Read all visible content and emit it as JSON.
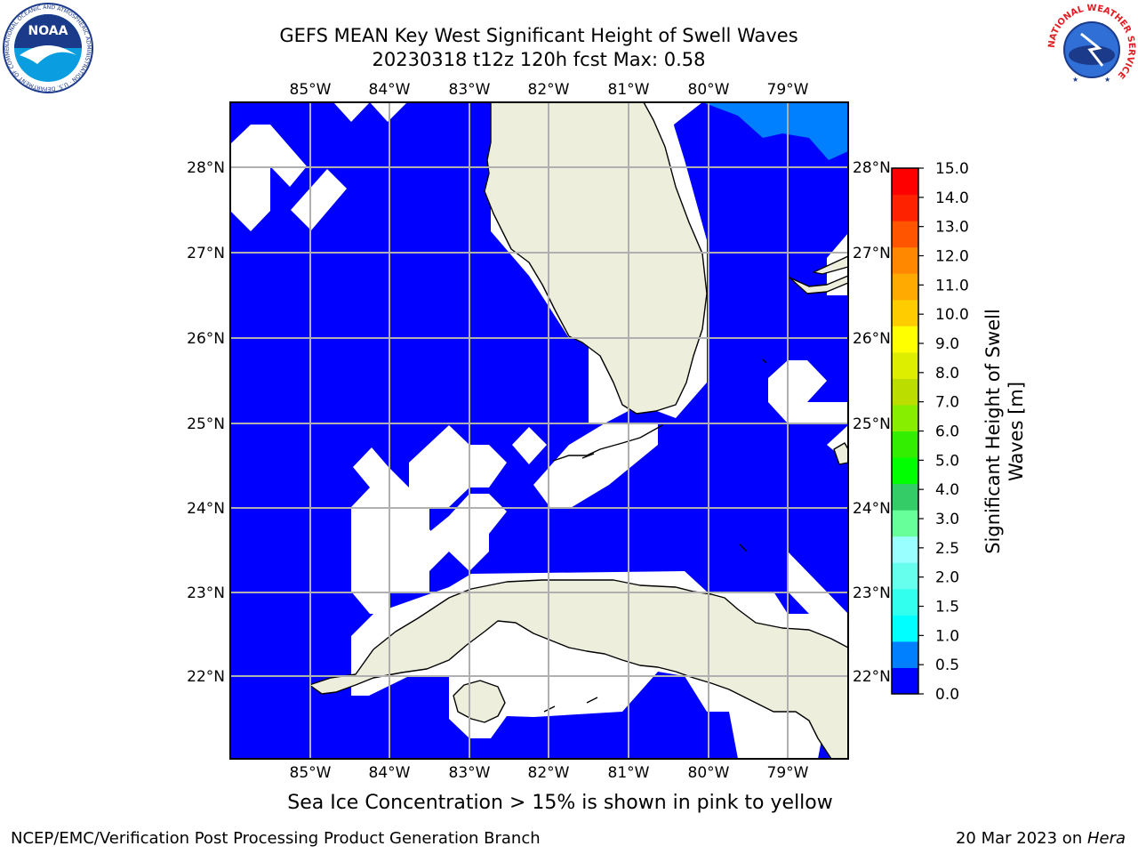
{
  "title": {
    "line1": "GEFS MEAN Key West Significant Height of Swell Waves",
    "line2": "20230318 t12z 120h fcst   Max: 0.58"
  },
  "map": {
    "lon_labels": [
      "85°W",
      "84°W",
      "83°W",
      "82°W",
      "81°W",
      "80°W",
      "79°W"
    ],
    "lat_labels": [
      "28°N",
      "27°N",
      "26°N",
      "25°N",
      "24°N",
      "23°N",
      "22°N"
    ],
    "colors": {
      "ocean": "#0000ff",
      "land": "#eeeedd",
      "grid": "#b0b0b0",
      "nodata": "#ffffff",
      "light_swell": "#0080ff"
    }
  },
  "colorbar": {
    "label_line1": "Significant Height of Swell",
    "label_line2": "Waves [m]",
    "ticks": [
      "0.0",
      "0.5",
      "1.0",
      "1.5",
      "2.0",
      "2.5",
      "3.0",
      "4.0",
      "5.0",
      "6.0",
      "7.0",
      "8.0",
      "9.0",
      "10.0",
      "11.0",
      "12.0",
      "13.0",
      "14.0",
      "15.0"
    ],
    "colors": [
      "#0000ff",
      "#0080ff",
      "#00ffff",
      "#33ffee",
      "#66ffee",
      "#99ffff",
      "#66ff99",
      "#33cc66",
      "#00ff00",
      "#33ee00",
      "#88ee00",
      "#bbdd00",
      "#ddee00",
      "#ffff00",
      "#ffcc00",
      "#ffaa00",
      "#ff8800",
      "#ff5500",
      "#ff2200",
      "#ff0000"
    ]
  },
  "note": "Sea Ice Concentration > 15% is shown in pink to yellow",
  "footer": {
    "left": "NCEP/EMC/Verification Post Processing Product Generation Branch",
    "right_prefix": "20 Mar 2023 on ",
    "right_host": "Hera"
  },
  "logos": {
    "noaa": "NOAA",
    "noaa_ring": "NATIONAL OCEANIC AND ATMOSPHERIC ADMINISTRATION · U.S. DEPARTMENT OF COMMERCE",
    "nws_ring": "NATIONAL WEATHER SERVICE"
  }
}
